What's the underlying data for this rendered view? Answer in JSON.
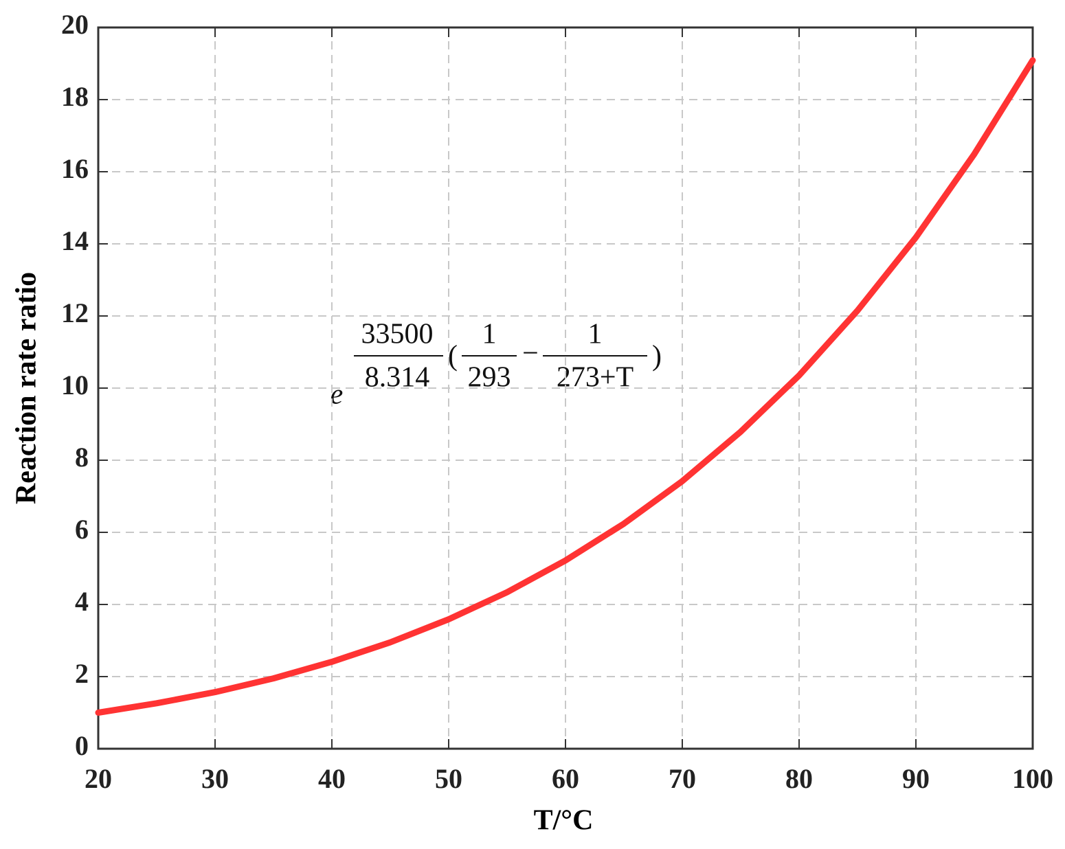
{
  "chart_data": {
    "type": "line",
    "x_label": "T/°C",
    "y_label": "Reaction rate ratio",
    "x": [
      20,
      25,
      30,
      35,
      40,
      45,
      50,
      55,
      60,
      65,
      70,
      75,
      80,
      85,
      90,
      95,
      100
    ],
    "values": [
      1,
      1.26,
      1.57,
      1.95,
      2.41,
      2.95,
      3.59,
      4.34,
      5.22,
      6.24,
      7.42,
      8.79,
      10.35,
      12.15,
      14.18,
      16.49,
      19.09
    ],
    "color": "#ff3333",
    "xlim": [
      20,
      100
    ],
    "xticks": [
      20,
      30,
      40,
      50,
      60,
      70,
      80,
      90,
      100
    ],
    "ylim": [
      0,
      20
    ],
    "yticks": [
      0,
      2,
      4,
      6,
      8,
      10,
      12,
      14,
      16,
      18,
      20
    ],
    "grid": true,
    "annotation": {
      "base": "e",
      "numerator": "33500",
      "denominator": "8.314",
      "open": "(",
      "a_num": "1",
      "a_den": "293",
      "minus": "−",
      "b_num": "1",
      "b_den": "273+T",
      "close": ")"
    }
  }
}
